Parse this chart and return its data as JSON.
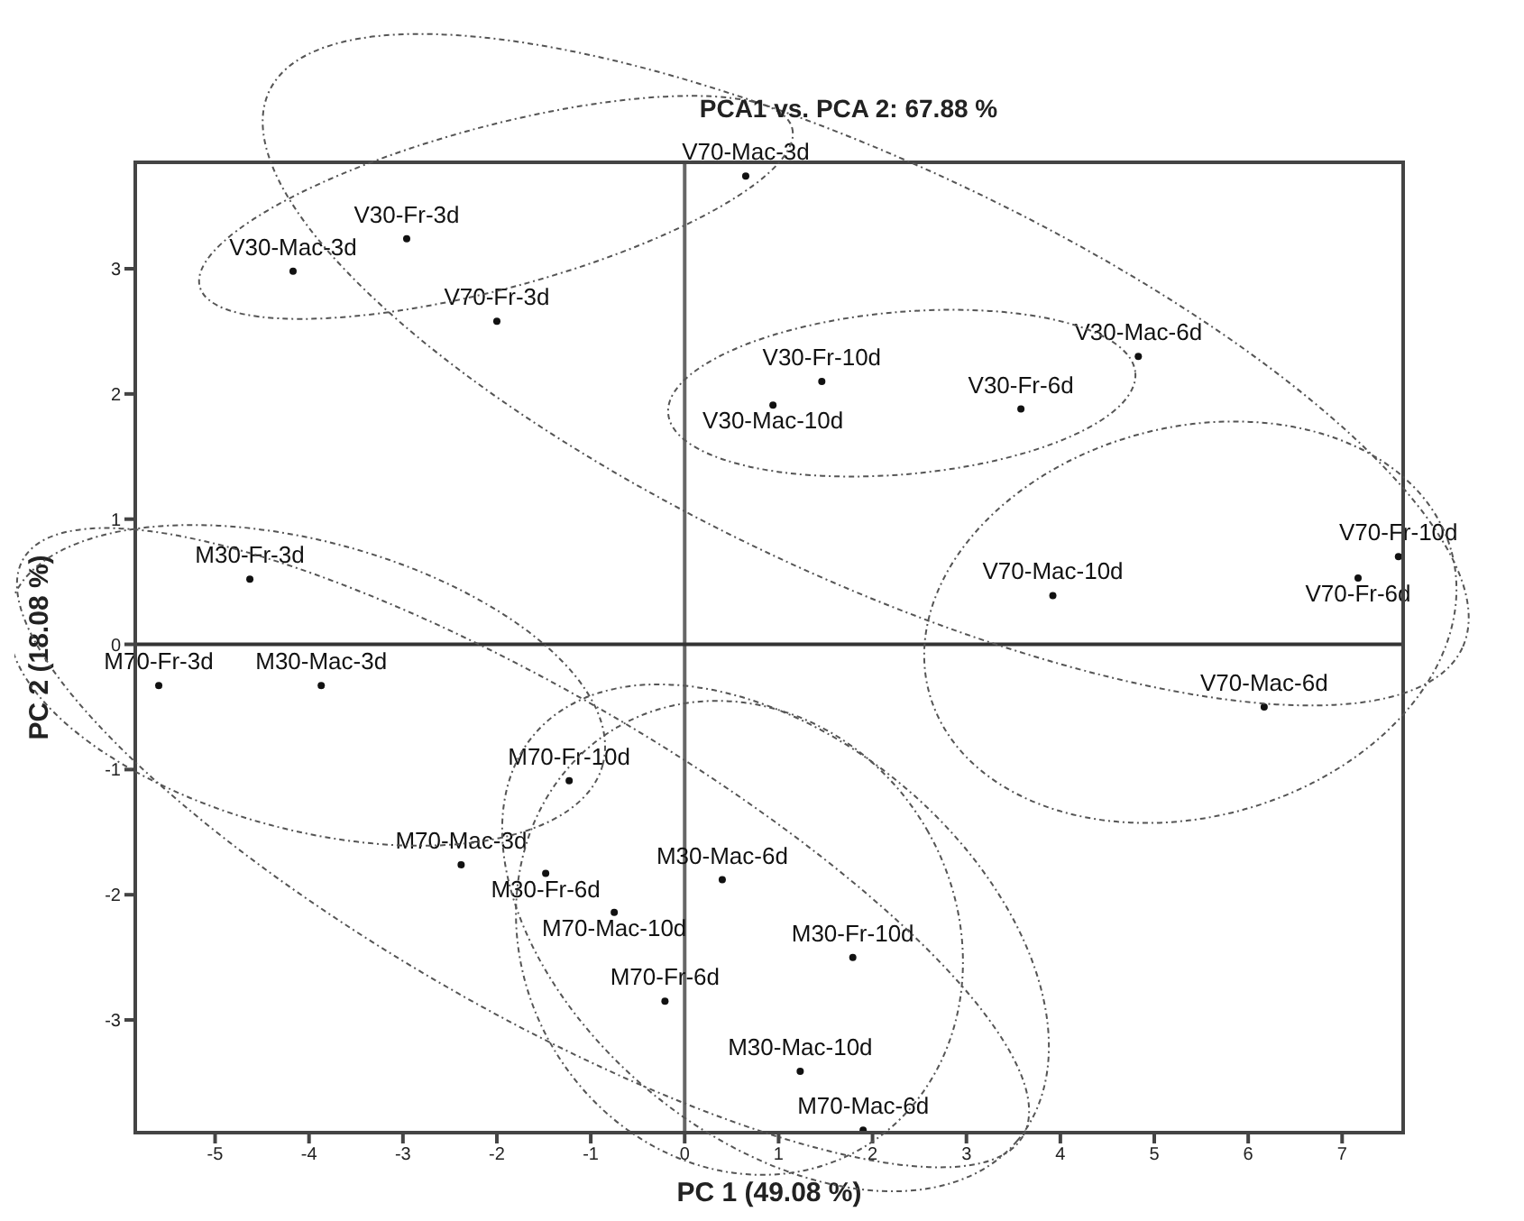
{
  "chart_data": {
    "type": "scatter",
    "title": "PCA1 vs. PCA 2: 67.88 %",
    "xlabel": "PC 1 (49.08 %)",
    "ylabel": "PC 2 (18.08 %)",
    "xlim": [
      -5.85,
      7.65
    ],
    "ylim": [
      -3.9,
      3.85
    ],
    "xticks": [
      -5,
      -4,
      -3,
      -2,
      -1,
      0,
      1,
      2,
      3,
      4,
      5,
      6,
      7
    ],
    "yticks": [
      -3,
      -2,
      -1,
      0,
      1,
      2,
      3
    ],
    "grid": false,
    "legend": false,
    "marker": "circle",
    "ref_lines": [
      {
        "axis": "x",
        "value": 0,
        "color": "#666666"
      },
      {
        "axis": "y",
        "value": 0,
        "color": "#333333"
      }
    ],
    "series": [
      {
        "name": "V70-Mac-3d",
        "color": "#111111",
        "x": [
          0.65
        ],
        "values": [
          3.74
        ]
      },
      {
        "name": "V30-Fr-3d",
        "color": "#111111",
        "x": [
          -2.96
        ],
        "values": [
          3.24
        ]
      },
      {
        "name": "V30-Mac-3d",
        "color": "#111111",
        "x": [
          -4.17
        ],
        "values": [
          2.98
        ]
      },
      {
        "name": "V70-Fr-3d",
        "color": "#111111",
        "x": [
          -2.0
        ],
        "values": [
          2.58
        ]
      },
      {
        "name": "V30-Mac-6d",
        "color": "#111111",
        "x": [
          4.83
        ],
        "values": [
          2.3
        ]
      },
      {
        "name": "V30-Fr-10d",
        "color": "#111111",
        "x": [
          1.46
        ],
        "values": [
          2.1
        ]
      },
      {
        "name": "V30-Mac-10d",
        "color": "#111111",
        "x": [
          0.94
        ],
        "values": [
          1.91
        ]
      },
      {
        "name": "V30-Fr-6d",
        "color": "#111111",
        "x": [
          3.58
        ],
        "values": [
          1.88
        ]
      },
      {
        "name": "V70-Fr-10d",
        "color": "#111111",
        "x": [
          7.6
        ],
        "values": [
          0.7
        ]
      },
      {
        "name": "V70-Fr-6d",
        "color": "#111111",
        "x": [
          7.17
        ],
        "values": [
          0.53
        ]
      },
      {
        "name": "V70-Mac-10d",
        "color": "#111111",
        "x": [
          3.92
        ],
        "values": [
          0.39
        ]
      },
      {
        "name": "V70-Mac-6d",
        "color": "#111111",
        "x": [
          6.17
        ],
        "values": [
          -0.5
        ]
      },
      {
        "name": "M30-Fr-3d",
        "color": "#111111",
        "x": [
          -4.63
        ],
        "values": [
          0.52
        ]
      },
      {
        "name": "M70-Fr-3d",
        "color": "#111111",
        "x": [
          -5.6
        ],
        "values": [
          -0.33
        ]
      },
      {
        "name": "M30-Mac-3d",
        "color": "#111111",
        "x": [
          -3.87
        ],
        "values": [
          -0.33
        ]
      },
      {
        "name": "M70-Fr-10d",
        "color": "#111111",
        "x": [
          -1.23
        ],
        "values": [
          -1.09
        ]
      },
      {
        "name": "M70-Mac-3d",
        "color": "#111111",
        "x": [
          -2.38
        ],
        "values": [
          -1.76
        ]
      },
      {
        "name": "M30-Fr-6d",
        "color": "#111111",
        "x": [
          -1.48
        ],
        "values": [
          -1.83
        ]
      },
      {
        "name": "M30-Mac-6d",
        "color": "#111111",
        "x": [
          0.4
        ],
        "values": [
          -1.88
        ]
      },
      {
        "name": "M70-Mac-10d",
        "color": "#111111",
        "x": [
          -0.75
        ],
        "values": [
          -2.14
        ]
      },
      {
        "name": "M30-Fr-10d",
        "color": "#111111",
        "x": [
          1.79
        ],
        "values": [
          -2.5
        ]
      },
      {
        "name": "M70-Fr-6d",
        "color": "#111111",
        "x": [
          -0.21
        ],
        "values": [
          -2.85
        ]
      },
      {
        "name": "M30-Mac-10d",
        "color": "#111111",
        "x": [
          1.23
        ],
        "values": [
          -3.41
        ]
      },
      {
        "name": "M70-Mac-6d",
        "color": "#111111",
        "x": [
          1.9
        ],
        "values": [
          -3.88
        ]
      }
    ]
  }
}
